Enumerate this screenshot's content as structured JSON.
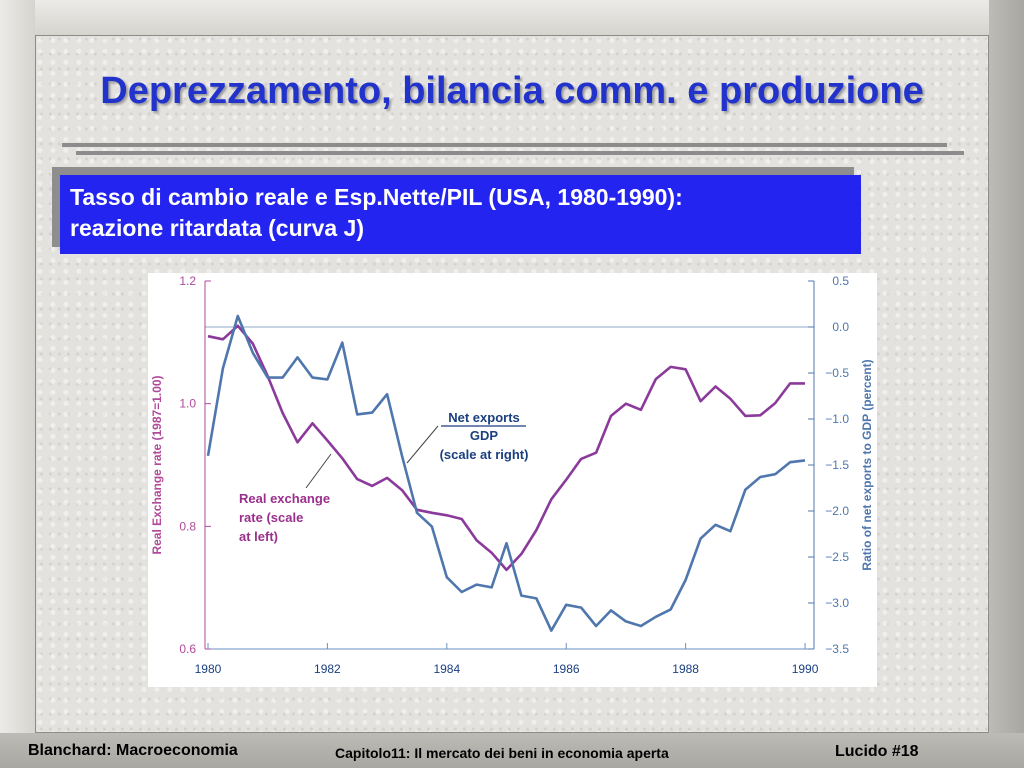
{
  "slide": {
    "title": "Deprezzamento, bilancia comm. e produzione",
    "box_line1": "Tasso di cambio reale e Esp.Nette/PIL (USA, 1980-1990):",
    "box_line2": "reazione ritardata (curva J)"
  },
  "footer": {
    "left": "Blanchard: Macroeconomia",
    "center": "Capitolo11: Il mercato dei beni in economia aperta",
    "right": "Lucido #18"
  },
  "chart_data": {
    "type": "line",
    "x_ticks": [
      1980,
      1982,
      1984,
      1986,
      1988,
      1990
    ],
    "xlim": [
      1979.95,
      1990.15
    ],
    "ylabel_left": "Real Exchange rate (1987=1.00)",
    "ylabel_right": "Ratio of net exports to GDP (percent)",
    "ylim_left": [
      0.6,
      1.2
    ],
    "yticks_left": [
      "0.6",
      "0.8",
      "1.0",
      "1.2"
    ],
    "ylim_right": [
      -3.5,
      0.5
    ],
    "yticks_right": [
      "0.5",
      "0.0",
      "−0.5",
      "−1.0",
      "−1.5",
      "−2.0",
      "−2.5",
      "−3.0",
      "−3.5"
    ],
    "annotations": {
      "net_exports_1": "Net exports",
      "net_exports_2": "GDP",
      "net_exports_3": "(scale at right)",
      "rer_1": "Real exchange",
      "rer_2": "rate (scale",
      "rer_3": "at left)"
    },
    "colors": {
      "real_exchange_rate": "#8b3a9b",
      "net_exports": "#4f77ad",
      "axis_left": "#b04a9a",
      "axis_right": "#4f77ad"
    },
    "series": [
      {
        "name": "Real exchange rate",
        "axis": "left",
        "x": [
          1980.0,
          1980.25,
          1980.5,
          1980.75,
          1981.0,
          1981.25,
          1981.5,
          1981.75,
          1982.0,
          1982.25,
          1982.5,
          1982.75,
          1983.0,
          1983.25,
          1983.5,
          1983.75,
          1984.0,
          1984.25,
          1984.5,
          1984.75,
          1985.0,
          1985.25,
          1985.5,
          1985.75,
          1986.0,
          1986.25,
          1986.5,
          1986.75,
          1987.0,
          1987.25,
          1987.5,
          1987.75,
          1988.0,
          1988.25,
          1988.5,
          1988.75,
          1989.0,
          1989.25,
          1989.5,
          1989.75,
          1990.0
        ],
        "y": [
          1.11,
          1.105,
          1.127,
          1.098,
          1.045,
          0.985,
          0.937,
          0.968,
          0.94,
          0.911,
          0.877,
          0.866,
          0.879,
          0.859,
          0.827,
          0.822,
          0.818,
          0.812,
          0.777,
          0.757,
          0.729,
          0.755,
          0.794,
          0.844,
          0.876,
          0.91,
          0.92,
          0.98,
          1.0,
          0.99,
          1.04,
          1.06,
          1.056,
          1.004,
          1.028,
          1.008,
          0.98,
          0.981,
          1.001,
          1.033,
          1.033
        ]
      },
      {
        "name": "Net exports / GDP",
        "axis": "right",
        "x": [
          1980.0,
          1980.25,
          1980.5,
          1980.75,
          1981.0,
          1981.25,
          1981.5,
          1981.75,
          1982.0,
          1982.25,
          1982.5,
          1982.75,
          1983.0,
          1983.25,
          1983.5,
          1983.75,
          1984.0,
          1984.25,
          1984.5,
          1984.75,
          1985.0,
          1985.25,
          1985.5,
          1985.75,
          1986.0,
          1986.25,
          1986.5,
          1986.75,
          1987.0,
          1987.25,
          1987.5,
          1987.75,
          1988.0,
          1988.25,
          1988.5,
          1988.75,
          1989.0,
          1989.25,
          1989.5,
          1989.75,
          1990.0
        ],
        "y": [
          -1.4,
          -0.45,
          0.12,
          -0.28,
          -0.55,
          -0.55,
          -0.33,
          -0.55,
          -0.57,
          -0.17,
          -0.95,
          -0.93,
          -0.73,
          -1.4,
          -2.02,
          -2.17,
          -2.72,
          -2.88,
          -2.8,
          -2.83,
          -2.35,
          -2.92,
          -2.95,
          -3.3,
          -3.02,
          -3.05,
          -3.25,
          -3.08,
          -3.2,
          -3.25,
          -3.15,
          -3.07,
          -2.75,
          -2.3,
          -2.15,
          -2.22,
          -1.77,
          -1.63,
          -1.6,
          -1.47,
          -1.45
        ]
      }
    ]
  }
}
